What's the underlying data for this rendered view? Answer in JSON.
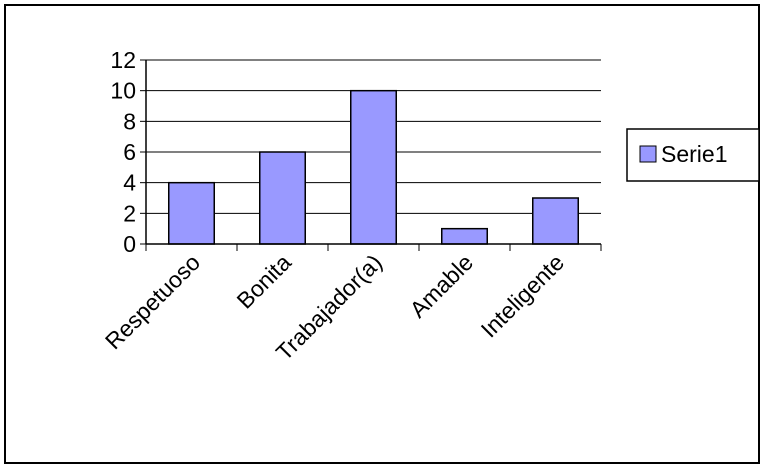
{
  "chart_data": {
    "type": "bar",
    "categories": [
      "Respetuoso",
      "Bonita",
      "Trabajador(a)",
      "Amable",
      "Inteligente"
    ],
    "series": [
      {
        "name": "Serie1",
        "values": [
          4,
          6,
          10,
          1,
          3
        ],
        "color": "#9999ff"
      }
    ],
    "yticks": [
      0,
      2,
      4,
      6,
      8,
      10,
      12
    ],
    "ylim": [
      0,
      12
    ],
    "grid": true,
    "legend_position": "right"
  }
}
